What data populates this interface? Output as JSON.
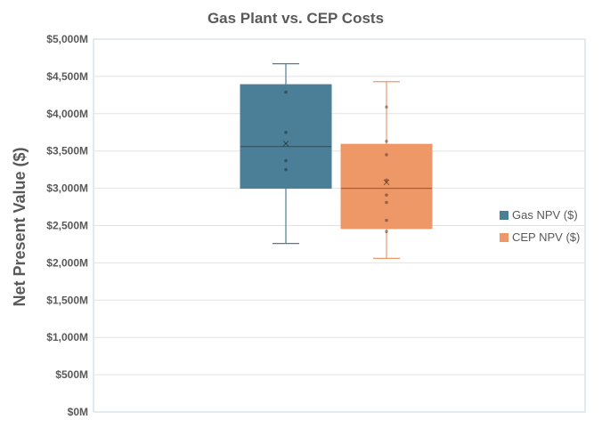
{
  "chart_data": {
    "type": "box",
    "title": "Gas Plant vs. CEP Costs",
    "ylabel": "Net Present Value ($)",
    "xlabel": "",
    "ylim": [
      0,
      5000
    ],
    "ytick_values": [
      0,
      500,
      1000,
      1500,
      2000,
      2500,
      3000,
      3500,
      4000,
      4500,
      5000
    ],
    "ytick_labels": [
      "$0M",
      "$500M",
      "$1,000M",
      "$1,500M",
      "$2,000M",
      "$2,500M",
      "$3,000M",
      "$3,500M",
      "$4,000M",
      "$4,500M",
      "$5,000M"
    ],
    "grid": true,
    "legend_position": "right",
    "series": [
      {
        "name": "Gas NPV ($)",
        "color": "#4a7f97",
        "whisker_low": 2260,
        "q1": 3000,
        "median": 3560,
        "q3": 4390,
        "whisker_high": 4670,
        "mean": 3600,
        "points": [
          4290,
          3750,
          3370,
          3250
        ]
      },
      {
        "name": "CEP NPV ($)",
        "color": "#ee9767",
        "whisker_low": 2060,
        "q1": 2460,
        "median": 3000,
        "q3": 3590,
        "whisker_high": 4430,
        "mean": 3080,
        "points": [
          4090,
          3630,
          3450,
          3110,
          2910,
          2810,
          2570,
          2420
        ]
      }
    ]
  }
}
